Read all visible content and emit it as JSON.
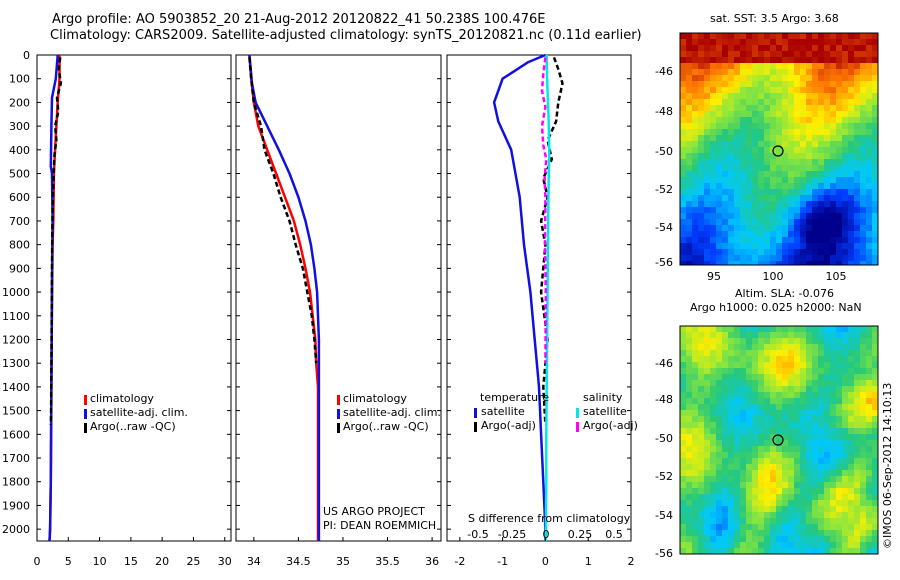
{
  "header": {
    "line1": "Argo profile: AO 5903852_20 21-Aug-2012 20120822_41 50.238S 100.476E",
    "line2": "Climatology: CARS2009. Satellite-adjusted climatology: synTS_20120821.nc (0.11d earlier)"
  },
  "colors": {
    "climatology": "#ff0000",
    "satellite": "#1010e0",
    "argo": "#000000",
    "salinity_sat": "#00e8e8",
    "salinity_argo": "#ff00ff"
  },
  "chart_data": [
    {
      "type": "line",
      "name": "temperature-profile",
      "xlim": [
        0,
        31
      ],
      "ylim": [
        2050,
        0
      ],
      "xticks": [
        0,
        5,
        10,
        15,
        20,
        25,
        30
      ],
      "yticks": [
        0,
        100,
        200,
        300,
        400,
        500,
        600,
        700,
        800,
        900,
        1000,
        1100,
        1200,
        1300,
        1400,
        1500,
        1600,
        1700,
        1800,
        1900,
        2000
      ],
      "legend": [
        "climatology",
        "satellite-adj. clim.",
        "Argo(..raw -QC)"
      ],
      "series": [
        {
          "name": "climatology",
          "x": [
            3.6,
            3.6,
            3.3,
            3.1,
            2.9,
            2.7,
            2.6,
            2.5,
            2.4,
            2.35,
            2.3,
            2.25,
            2.2,
            2.1,
            2.0
          ],
          "y": [
            0,
            100,
            200,
            300,
            400,
            500,
            700,
            800,
            1000,
            1200,
            1400,
            1600,
            1800,
            2000,
            2050
          ]
        },
        {
          "name": "satellite-adj. clim.",
          "x": [
            3.3,
            3.0,
            2.4,
            2.3,
            2.2,
            2.4,
            2.5,
            2.45,
            2.4,
            2.35,
            2.3,
            2.25,
            2.2,
            2.1,
            2.0
          ],
          "y": [
            0,
            100,
            180,
            300,
            470,
            500,
            700,
            800,
            1000,
            1200,
            1400,
            1600,
            1800,
            2000,
            2050
          ]
        },
        {
          "name": "Argo(..raw -QC)",
          "x": [
            3.7,
            3.5,
            3.8,
            3.2,
            3.4,
            2.9,
            3.1,
            2.8,
            2.7,
            2.6,
            2.5,
            2.45,
            2.4,
            2.35,
            2.3,
            2.25,
            2.2
          ],
          "y": [
            10,
            60,
            120,
            180,
            240,
            300,
            360,
            420,
            480,
            560,
            650,
            750,
            900,
            1100,
            1300,
            1500,
            1560
          ]
        }
      ]
    },
    {
      "type": "line",
      "name": "salinity-profile",
      "xlim": [
        33.8,
        36.1
      ],
      "ylim": [
        2050,
        0
      ],
      "xticks": [
        34,
        34.5,
        35,
        35.5,
        36
      ],
      "legend": [
        "climatology",
        "satellite-adj. clim.",
        "Argo(..raw -QC)"
      ],
      "series": [
        {
          "name": "climatology",
          "x": [
            33.95,
            33.97,
            34.0,
            34.05,
            34.15,
            34.25,
            34.35,
            34.45,
            34.52,
            34.58,
            34.63,
            34.66,
            34.69,
            34.7,
            34.72,
            34.72,
            34.72
          ],
          "y": [
            0,
            100,
            200,
            300,
            400,
            500,
            600,
            700,
            800,
            900,
            1000,
            1100,
            1200,
            1300,
            1400,
            1600,
            2050
          ]
        },
        {
          "name": "satellite-adj. clim.",
          "x": [
            33.95,
            33.98,
            34.02,
            34.15,
            34.28,
            34.4,
            34.5,
            34.58,
            34.64,
            34.68,
            34.71,
            34.73,
            34.73,
            34.73,
            34.73
          ],
          "y": [
            0,
            120,
            200,
            300,
            400,
            500,
            600,
            700,
            800,
            900,
            1000,
            1200,
            1400,
            1600,
            2050
          ]
        },
        {
          "name": "Argo(..raw -QC)",
          "x": [
            33.95,
            33.97,
            34.0,
            34.08,
            34.12,
            34.22,
            34.3,
            34.4,
            34.47,
            34.55,
            34.6,
            34.65,
            34.68,
            34.7
          ],
          "y": [
            10,
            100,
            200,
            300,
            400,
            500,
            600,
            700,
            800,
            900,
            1000,
            1100,
            1200,
            1300
          ]
        }
      ]
    },
    {
      "type": "line",
      "name": "difference-from-climatology",
      "xlim": [
        -2.3,
        2.0
      ],
      "ylim": [
        2050,
        0
      ],
      "xticks_temperature": [
        -2,
        -1,
        0,
        1,
        2
      ],
      "xticks_salinity": [
        "-0.5",
        "-0.25",
        "0",
        "0.25",
        "0.5"
      ],
      "xlabel": "S difference from climatology",
      "legend": {
        "temperature_header": "temperature",
        "salinity_header": "salinity",
        "temp_satellite": "satellite",
        "temp_argo": "Argo(-adj)",
        "sal_satellite": "satellite",
        "sal_argo": "Argo(-adj)"
      },
      "series": [
        {
          "name": "temperature satellite",
          "x": [
            0.0,
            -0.4,
            -1.0,
            -1.2,
            -1.1,
            -0.8,
            -0.6,
            -0.5,
            -0.35,
            -0.25,
            -0.15,
            -0.1,
            -0.05,
            0.0,
            0.0
          ],
          "y": [
            0,
            30,
            100,
            200,
            280,
            400,
            600,
            800,
            1000,
            1200,
            1400,
            1600,
            1800,
            2000,
            2050
          ]
        },
        {
          "name": "temperature Argo",
          "x": [
            0.2,
            0.3,
            0.4,
            0.3,
            0.25,
            0.05,
            0.15,
            -0.05,
            0.05,
            -0.1,
            0.0,
            -0.1,
            0.05,
            -0.05,
            0.0
          ],
          "y": [
            10,
            60,
            120,
            200,
            280,
            360,
            440,
            520,
            600,
            700,
            800,
            1000,
            1200,
            1400,
            1560
          ]
        },
        {
          "name": "salinity satellite",
          "x": [
            0.03,
            0.04,
            0.06,
            0.08,
            0.09,
            0.08,
            0.07,
            0.06,
            0.05,
            0.04,
            0.03,
            0.02,
            0.02,
            0.01
          ],
          "y": [
            0,
            100,
            200,
            300,
            400,
            500,
            600,
            800,
            1000,
            1200,
            1400,
            1600,
            1800,
            2050
          ]
        },
        {
          "name": "salinity Argo",
          "x": [
            0.0,
            -0.05,
            -0.08,
            0.0,
            -0.08,
            -0.05,
            0.02,
            -0.02,
            0.0,
            -0.01,
            0.01,
            0.0
          ],
          "y": [
            10,
            80,
            150,
            220,
            300,
            380,
            440,
            520,
            600,
            800,
            1000,
            1300
          ]
        }
      ]
    }
  ],
  "footer": {
    "project": "US ARGO PROJECT",
    "pi": "PI: DEAN ROEMMICH"
  },
  "map_top": {
    "title": "sat. SST: 3.5 Argo: 3.68",
    "yticks": [
      "-46",
      "-48",
      "-50",
      "-52",
      "-54",
      "-56"
    ],
    "xticks": [
      "95",
      "100",
      "105"
    ],
    "below1": "Altim. SLA: -0.076",
    "below2": "Argo h1000: 0.025 h2000: NaN"
  },
  "map_bottom": {
    "yticks": [
      "-46",
      "-48",
      "-50",
      "-52",
      "-54",
      "-56"
    ]
  },
  "credit": "©IMOS 06-Sep-2012 14:10:13"
}
